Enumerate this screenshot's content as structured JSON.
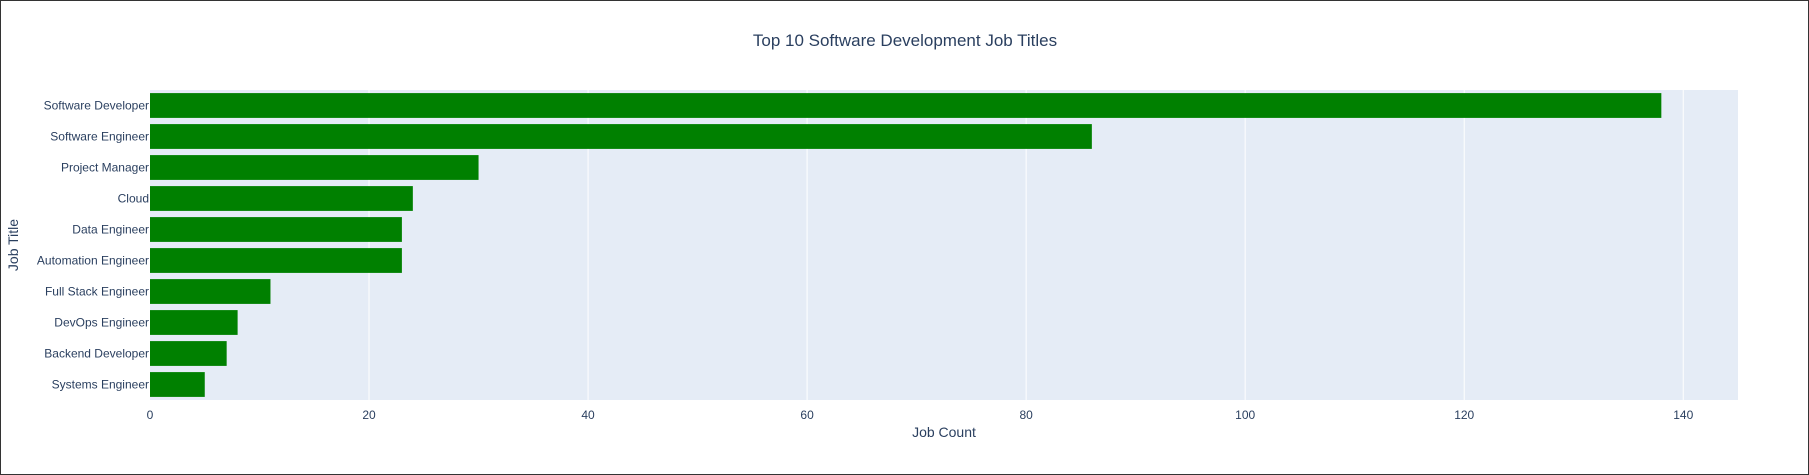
{
  "chart_data": {
    "type": "bar",
    "orientation": "horizontal",
    "title": "Top 10 Software Development Job Titles",
    "xlabel": "Job Count",
    "ylabel": "Job Title",
    "categories": [
      "Software Developer",
      "Software Engineer",
      "Project Manager",
      "Cloud",
      "Data Engineer",
      "Automation Engineer",
      "Full Stack Engineer",
      "DevOps Engineer",
      "Backend Developer",
      "Systems Engineer"
    ],
    "values": [
      138,
      86,
      30,
      24,
      23,
      23,
      11,
      8,
      7,
      5
    ],
    "xlim": [
      0,
      145
    ],
    "xticks": [
      0,
      20,
      40,
      60,
      80,
      100,
      120,
      140
    ],
    "grid": true,
    "bar_color": "#008000",
    "plot_background": "#e5ecf6",
    "text_color": "#2a3f5f"
  }
}
